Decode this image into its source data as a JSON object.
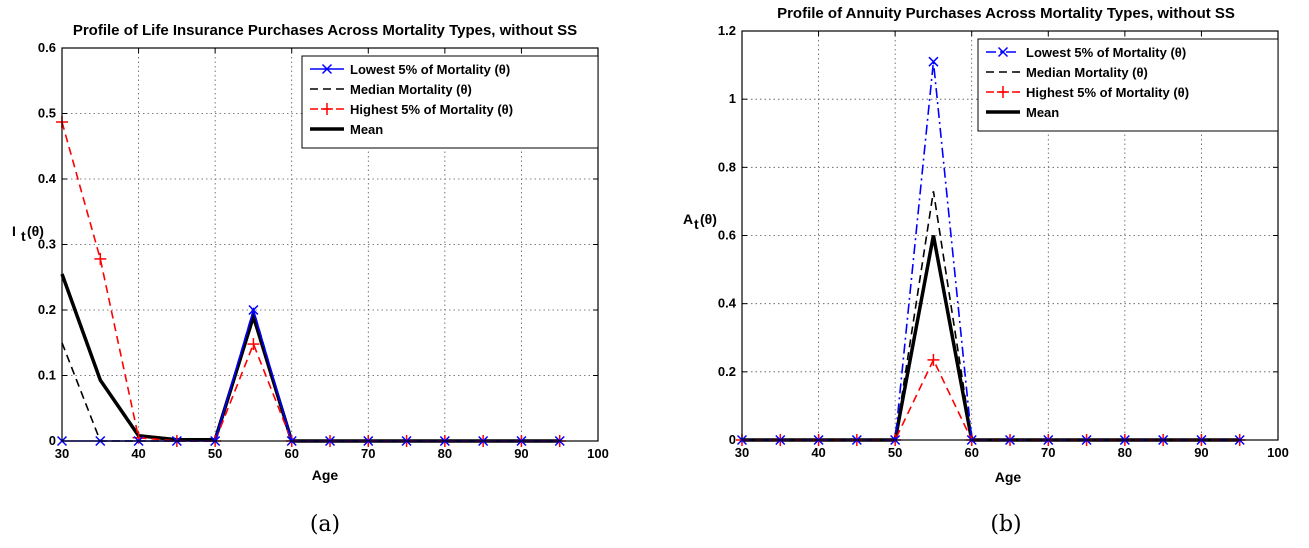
{
  "chart_data": [
    {
      "type": "line",
      "title": "Profile of Life Insurance Purchases Across Mortality Types, without SS",
      "xlabel": "Age",
      "ylabel": "I_t(θ)",
      "caption": "(a)",
      "xlim": [
        30,
        100
      ],
      "ylim": [
        0,
        0.6
      ],
      "xticks": [
        "30",
        "40",
        "50",
        "60",
        "70",
        "80",
        "90",
        "100"
      ],
      "yticks": [
        "0",
        "0.1",
        "0.2",
        "0.3",
        "0.4",
        "0.5",
        "0.6"
      ],
      "grid": true,
      "legend_position": "top-right",
      "x": [
        30,
        35,
        40,
        45,
        50,
        55,
        60,
        65,
        70,
        75,
        80,
        85,
        90,
        95
      ],
      "series": [
        {
          "name": "Lowest 5% of Mortality (θ)",
          "color": "#0000ff",
          "dash": "solid",
          "marker": "x",
          "values": [
            0,
            0,
            0,
            0,
            0,
            0.2,
            0,
            0,
            0,
            0,
            0,
            0,
            0,
            0
          ]
        },
        {
          "name": "Median Mortality (θ)",
          "color": "#000000",
          "dash": "dashed",
          "marker": "none",
          "values": [
            0.15,
            0,
            0,
            0,
            0,
            0.2,
            0,
            0,
            0,
            0,
            0,
            0,
            0,
            0
          ]
        },
        {
          "name": "Highest 5% of Mortality (θ)",
          "color": "#ff0000",
          "dash": "dashed",
          "marker": "+",
          "values": [
            0.487,
            0.278,
            0.005,
            0,
            0,
            0.148,
            0,
            0,
            0,
            0,
            0,
            0,
            0,
            0
          ]
        },
        {
          "name": "Mean",
          "color": "#000000",
          "dash": "solid-thick",
          "marker": "none",
          "values": [
            0.255,
            0.093,
            0.008,
            0.002,
            0.002,
            0.19,
            0,
            0,
            0,
            0,
            0,
            0,
            0,
            0
          ]
        }
      ]
    },
    {
      "type": "line",
      "title": "Profile of Annuity Purchases Across Mortality Types, without SS",
      "xlabel": "Age",
      "ylabel": "A_t(θ)",
      "caption": "(b)",
      "xlim": [
        30,
        100
      ],
      "ylim": [
        0,
        1.2
      ],
      "xticks": [
        "30",
        "40",
        "50",
        "60",
        "70",
        "80",
        "90",
        "100"
      ],
      "yticks": [
        "0",
        "0.2",
        "0.4",
        "0.6",
        "0.8",
        "1",
        "1.2"
      ],
      "grid": true,
      "legend_position": "top-right",
      "x": [
        30,
        35,
        40,
        45,
        50,
        55,
        60,
        65,
        70,
        75,
        80,
        85,
        90,
        95
      ],
      "series": [
        {
          "name": "Lowest 5% of Mortality (θ)",
          "color": "#0000ff",
          "dash": "dashdot",
          "marker": "x",
          "values": [
            0,
            0,
            0,
            0,
            0,
            1.11,
            0,
            0,
            0,
            0,
            0,
            0,
            0,
            0
          ]
        },
        {
          "name": "Median Mortality (θ)",
          "color": "#000000",
          "dash": "dashed",
          "marker": "none",
          "values": [
            0,
            0,
            0,
            0,
            0,
            0.73,
            0,
            0,
            0,
            0,
            0,
            0,
            0,
            0
          ]
        },
        {
          "name": "Highest 5% of Mortality (θ)",
          "color": "#ff0000",
          "dash": "dashed",
          "marker": "+",
          "values": [
            0,
            0,
            0,
            0,
            0,
            0.235,
            0,
            0,
            0,
            0,
            0,
            0,
            0,
            0
          ]
        },
        {
          "name": "Mean",
          "color": "#000000",
          "dash": "solid-thick",
          "marker": "none",
          "values": [
            0,
            0,
            0,
            0,
            0,
            0.6,
            0,
            0,
            0,
            0,
            0,
            0,
            0,
            0
          ]
        }
      ]
    }
  ]
}
